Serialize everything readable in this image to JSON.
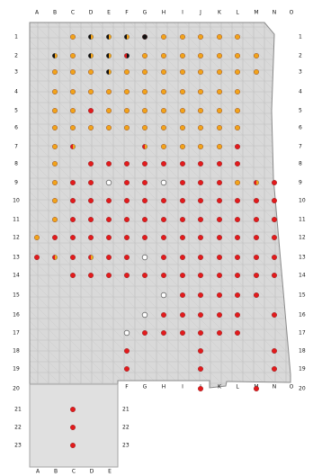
{
  "map": {
    "columns_top": [
      "A",
      "B",
      "C",
      "D",
      "E",
      "F",
      "G",
      "H",
      "I",
      "J",
      "K",
      "L",
      "M",
      "N",
      "O"
    ],
    "rows_left": [
      "1",
      "2",
      "3",
      "4",
      "5",
      "6",
      "7",
      "8",
      "9",
      "10",
      "11",
      "12",
      "13",
      "14",
      "15",
      "16",
      "17",
      "18",
      "19",
      "20"
    ],
    "rows_right": [
      "1",
      "2",
      "3",
      "4",
      "5",
      "6",
      "7",
      "8",
      "9",
      "10",
      "11",
      "12",
      "13",
      "14",
      "15",
      "16",
      "17",
      "18",
      "19",
      "20"
    ],
    "columns_bottom_main": [
      "F",
      "G",
      "H",
      "I",
      "J",
      "K",
      "L",
      "M",
      "N",
      "O"
    ],
    "inset_rows_left": [
      "21",
      "22",
      "23"
    ],
    "inset_rows_right": [
      "21",
      "22",
      "23"
    ],
    "inset_columns_bottom": [
      "A",
      "B",
      "C",
      "D",
      "E"
    ],
    "legend_colors": {
      "black": "#111111",
      "red": "#e31a1c",
      "orange": "#f2a31a",
      "white": "#ffffff"
    }
  },
  "points": [
    {
      "col": "C",
      "row": "1",
      "color": "orange"
    },
    {
      "col": "D",
      "row": "1",
      "color": "black-orange"
    },
    {
      "col": "E",
      "row": "1",
      "color": "black-orange"
    },
    {
      "col": "F",
      "row": "1",
      "color": "black-orange"
    },
    {
      "col": "G",
      "row": "1",
      "color": "black"
    },
    {
      "col": "H",
      "row": "1",
      "color": "orange"
    },
    {
      "col": "I",
      "row": "1",
      "color": "orange"
    },
    {
      "col": "J",
      "row": "1",
      "color": "orange"
    },
    {
      "col": "K",
      "row": "1",
      "color": "orange"
    },
    {
      "col": "L",
      "row": "1",
      "color": "orange"
    },
    {
      "col": "B",
      "row": "2",
      "color": "black-orange"
    },
    {
      "col": "C",
      "row": "2",
      "color": "orange"
    },
    {
      "col": "D",
      "row": "2",
      "color": "black-orange"
    },
    {
      "col": "E",
      "row": "2",
      "color": "black-orange"
    },
    {
      "col": "F",
      "row": "2",
      "color": "red-black"
    },
    {
      "col": "G",
      "row": "2",
      "color": "orange"
    },
    {
      "col": "H",
      "row": "2",
      "color": "orange"
    },
    {
      "col": "I",
      "row": "2",
      "color": "orange"
    },
    {
      "col": "J",
      "row": "2",
      "color": "orange"
    },
    {
      "col": "K",
      "row": "2",
      "color": "orange"
    },
    {
      "col": "L",
      "row": "2",
      "color": "orange"
    },
    {
      "col": "M",
      "row": "2",
      "color": "orange"
    },
    {
      "col": "B",
      "row": "3",
      "color": "orange"
    },
    {
      "col": "C",
      "row": "3",
      "color": "orange"
    },
    {
      "col": "D",
      "row": "3",
      "color": "orange"
    },
    {
      "col": "E",
      "row": "3",
      "color": "black-orange"
    },
    {
      "col": "F",
      "row": "3",
      "color": "orange"
    },
    {
      "col": "G",
      "row": "3",
      "color": "orange"
    },
    {
      "col": "H",
      "row": "3",
      "color": "orange"
    },
    {
      "col": "I",
      "row": "3",
      "color": "orange"
    },
    {
      "col": "J",
      "row": "3",
      "color": "orange"
    },
    {
      "col": "K",
      "row": "3",
      "color": "orange"
    },
    {
      "col": "L",
      "row": "3",
      "color": "orange"
    },
    {
      "col": "M",
      "row": "3",
      "color": "orange"
    },
    {
      "col": "B",
      "row": "4",
      "color": "orange"
    },
    {
      "col": "C",
      "row": "4",
      "color": "orange"
    },
    {
      "col": "D",
      "row": "4",
      "color": "orange"
    },
    {
      "col": "E",
      "row": "4",
      "color": "orange"
    },
    {
      "col": "F",
      "row": "4",
      "color": "orange"
    },
    {
      "col": "G",
      "row": "4",
      "color": "orange"
    },
    {
      "col": "H",
      "row": "4",
      "color": "orange"
    },
    {
      "col": "I",
      "row": "4",
      "color": "orange"
    },
    {
      "col": "J",
      "row": "4",
      "color": "orange"
    },
    {
      "col": "K",
      "row": "4",
      "color": "orange"
    },
    {
      "col": "L",
      "row": "4",
      "color": "orange"
    },
    {
      "col": "B",
      "row": "5",
      "color": "orange"
    },
    {
      "col": "C",
      "row": "5",
      "color": "orange"
    },
    {
      "col": "D",
      "row": "5",
      "color": "red"
    },
    {
      "col": "E",
      "row": "5",
      "color": "orange"
    },
    {
      "col": "F",
      "row": "5",
      "color": "orange"
    },
    {
      "col": "G",
      "row": "5",
      "color": "orange"
    },
    {
      "col": "H",
      "row": "5",
      "color": "orange"
    },
    {
      "col": "I",
      "row": "5",
      "color": "orange"
    },
    {
      "col": "J",
      "row": "5",
      "color": "orange"
    },
    {
      "col": "K",
      "row": "5",
      "color": "orange"
    },
    {
      "col": "L",
      "row": "5",
      "color": "orange"
    },
    {
      "col": "B",
      "row": "6",
      "color": "orange"
    },
    {
      "col": "C",
      "row": "6",
      "color": "orange"
    },
    {
      "col": "D",
      "row": "6",
      "color": "orange"
    },
    {
      "col": "E",
      "row": "6",
      "color": "orange"
    },
    {
      "col": "F",
      "row": "6",
      "color": "orange"
    },
    {
      "col": "G",
      "row": "6",
      "color": "orange"
    },
    {
      "col": "H",
      "row": "6",
      "color": "orange"
    },
    {
      "col": "I",
      "row": "6",
      "color": "orange"
    },
    {
      "col": "J",
      "row": "6",
      "color": "orange"
    },
    {
      "col": "K",
      "row": "6",
      "color": "orange"
    },
    {
      "col": "L",
      "row": "6",
      "color": "orange"
    },
    {
      "col": "B",
      "row": "7",
      "color": "orange"
    },
    {
      "col": "C",
      "row": "7",
      "color": "red-orange"
    },
    {
      "col": "G",
      "row": "7",
      "color": "red-orange"
    },
    {
      "col": "H",
      "row": "7",
      "color": "orange"
    },
    {
      "col": "I",
      "row": "7",
      "color": "orange"
    },
    {
      "col": "J",
      "row": "7",
      "color": "orange"
    },
    {
      "col": "K",
      "row": "7",
      "color": "orange"
    },
    {
      "col": "L",
      "row": "7",
      "color": "red"
    },
    {
      "col": "B",
      "row": "8",
      "color": "orange"
    },
    {
      "col": "D",
      "row": "8",
      "color": "red"
    },
    {
      "col": "E",
      "row": "8",
      "color": "red"
    },
    {
      "col": "F",
      "row": "8",
      "color": "red"
    },
    {
      "col": "G",
      "row": "8",
      "color": "red"
    },
    {
      "col": "H",
      "row": "8",
      "color": "red"
    },
    {
      "col": "I",
      "row": "8",
      "color": "red"
    },
    {
      "col": "J",
      "row": "8",
      "color": "red"
    },
    {
      "col": "K",
      "row": "8",
      "color": "red"
    },
    {
      "col": "L",
      "row": "8",
      "color": "red"
    },
    {
      "col": "B",
      "row": "9",
      "color": "orange"
    },
    {
      "col": "C",
      "row": "9",
      "color": "red"
    },
    {
      "col": "D",
      "row": "9",
      "color": "red"
    },
    {
      "col": "E",
      "row": "9",
      "color": "white"
    },
    {
      "col": "F",
      "row": "9",
      "color": "red"
    },
    {
      "col": "G",
      "row": "9",
      "color": "red"
    },
    {
      "col": "H",
      "row": "9",
      "color": "white"
    },
    {
      "col": "I",
      "row": "9",
      "color": "red"
    },
    {
      "col": "J",
      "row": "9",
      "color": "red"
    },
    {
      "col": "K",
      "row": "9",
      "color": "red"
    },
    {
      "col": "L",
      "row": "9",
      "color": "orange"
    },
    {
      "col": "M",
      "row": "9",
      "color": "red-orange"
    },
    {
      "col": "N",
      "row": "9",
      "color": "red"
    },
    {
      "col": "B",
      "row": "10",
      "color": "orange"
    },
    {
      "col": "C",
      "row": "10",
      "color": "red"
    },
    {
      "col": "D",
      "row": "10",
      "color": "red"
    },
    {
      "col": "E",
      "row": "10",
      "color": "red"
    },
    {
      "col": "F",
      "row": "10",
      "color": "red"
    },
    {
      "col": "G",
      "row": "10",
      "color": "red"
    },
    {
      "col": "H",
      "row": "10",
      "color": "red"
    },
    {
      "col": "I",
      "row": "10",
      "color": "red"
    },
    {
      "col": "J",
      "row": "10",
      "color": "red"
    },
    {
      "col": "K",
      "row": "10",
      "color": "red"
    },
    {
      "col": "L",
      "row": "10",
      "color": "red"
    },
    {
      "col": "M",
      "row": "10",
      "color": "red"
    },
    {
      "col": "N",
      "row": "10",
      "color": "red"
    },
    {
      "col": "B",
      "row": "11",
      "color": "orange"
    },
    {
      "col": "C",
      "row": "11",
      "color": "red"
    },
    {
      "col": "D",
      "row": "11",
      "color": "red"
    },
    {
      "col": "E",
      "row": "11",
      "color": "red"
    },
    {
      "col": "F",
      "row": "11",
      "color": "red"
    },
    {
      "col": "G",
      "row": "11",
      "color": "red"
    },
    {
      "col": "H",
      "row": "11",
      "color": "red"
    },
    {
      "col": "I",
      "row": "11",
      "color": "red"
    },
    {
      "col": "J",
      "row": "11",
      "color": "red"
    },
    {
      "col": "K",
      "row": "11",
      "color": "red"
    },
    {
      "col": "L",
      "row": "11",
      "color": "red"
    },
    {
      "col": "M",
      "row": "11",
      "color": "red"
    },
    {
      "col": "N",
      "row": "11",
      "color": "red"
    },
    {
      "col": "A",
      "row": "12",
      "color": "orange"
    },
    {
      "col": "B",
      "row": "12",
      "color": "red"
    },
    {
      "col": "C",
      "row": "12",
      "color": "red"
    },
    {
      "col": "D",
      "row": "12",
      "color": "red"
    },
    {
      "col": "E",
      "row": "12",
      "color": "red"
    },
    {
      "col": "F",
      "row": "12",
      "color": "red"
    },
    {
      "col": "G",
      "row": "12",
      "color": "red"
    },
    {
      "col": "H",
      "row": "12",
      "color": "red"
    },
    {
      "col": "I",
      "row": "12",
      "color": "red"
    },
    {
      "col": "J",
      "row": "12",
      "color": "red"
    },
    {
      "col": "K",
      "row": "12",
      "color": "red"
    },
    {
      "col": "L",
      "row": "12",
      "color": "red"
    },
    {
      "col": "M",
      "row": "12",
      "color": "red"
    },
    {
      "col": "N",
      "row": "12",
      "color": "red"
    },
    {
      "col": "A",
      "row": "13",
      "color": "red"
    },
    {
      "col": "B",
      "row": "13",
      "color": "red-orange"
    },
    {
      "col": "C",
      "row": "13",
      "color": "red"
    },
    {
      "col": "D",
      "row": "13",
      "color": "red-orange"
    },
    {
      "col": "E",
      "row": "13",
      "color": "red"
    },
    {
      "col": "F",
      "row": "13",
      "color": "red"
    },
    {
      "col": "G",
      "row": "13",
      "color": "white"
    },
    {
      "col": "H",
      "row": "13",
      "color": "red"
    },
    {
      "col": "I",
      "row": "13",
      "color": "red"
    },
    {
      "col": "J",
      "row": "13",
      "color": "red"
    },
    {
      "col": "K",
      "row": "13",
      "color": "red"
    },
    {
      "col": "L",
      "row": "13",
      "color": "red"
    },
    {
      "col": "M",
      "row": "13",
      "color": "red"
    },
    {
      "col": "N",
      "row": "13",
      "color": "red"
    },
    {
      "col": "C",
      "row": "14",
      "color": "red"
    },
    {
      "col": "D",
      "row": "14",
      "color": "red"
    },
    {
      "col": "E",
      "row": "14",
      "color": "red"
    },
    {
      "col": "F",
      "row": "14",
      "color": "red"
    },
    {
      "col": "G",
      "row": "14",
      "color": "red"
    },
    {
      "col": "H",
      "row": "14",
      "color": "red"
    },
    {
      "col": "I",
      "row": "14",
      "color": "red"
    },
    {
      "col": "J",
      "row": "14",
      "color": "red"
    },
    {
      "col": "K",
      "row": "14",
      "color": "red"
    },
    {
      "col": "L",
      "row": "14",
      "color": "red"
    },
    {
      "col": "M",
      "row": "14",
      "color": "red"
    },
    {
      "col": "N",
      "row": "14",
      "color": "red"
    },
    {
      "col": "H",
      "row": "15",
      "color": "white"
    },
    {
      "col": "I",
      "row": "15",
      "color": "red"
    },
    {
      "col": "J",
      "row": "15",
      "color": "red"
    },
    {
      "col": "K",
      "row": "15",
      "color": "red"
    },
    {
      "col": "L",
      "row": "15",
      "color": "red"
    },
    {
      "col": "M",
      "row": "15",
      "color": "red"
    },
    {
      "col": "G",
      "row": "16",
      "color": "white"
    },
    {
      "col": "H",
      "row": "16",
      "color": "red"
    },
    {
      "col": "I",
      "row": "16",
      "color": "red"
    },
    {
      "col": "J",
      "row": "16",
      "color": "red"
    },
    {
      "col": "K",
      "row": "16",
      "color": "red"
    },
    {
      "col": "L",
      "row": "16",
      "color": "red"
    },
    {
      "col": "N",
      "row": "16",
      "color": "red"
    },
    {
      "col": "F",
      "row": "17",
      "color": "white"
    },
    {
      "col": "G",
      "row": "17",
      "color": "red"
    },
    {
      "col": "H",
      "row": "17",
      "color": "red"
    },
    {
      "col": "I",
      "row": "17",
      "color": "red"
    },
    {
      "col": "J",
      "row": "17",
      "color": "red"
    },
    {
      "col": "K",
      "row": "17",
      "color": "red"
    },
    {
      "col": "L",
      "row": "17",
      "color": "red"
    },
    {
      "col": "F",
      "row": "18",
      "color": "red"
    },
    {
      "col": "J",
      "row": "18",
      "color": "red"
    },
    {
      "col": "N",
      "row": "18",
      "color": "red"
    },
    {
      "col": "F",
      "row": "19",
      "color": "red"
    },
    {
      "col": "J",
      "row": "19",
      "color": "red"
    },
    {
      "col": "N",
      "row": "19",
      "color": "red"
    },
    {
      "col": "J",
      "row": "20",
      "color": "red"
    },
    {
      "col": "M",
      "row": "20",
      "color": "red"
    },
    {
      "col": "C",
      "row": "21",
      "color": "red"
    },
    {
      "col": "C",
      "row": "22",
      "color": "red"
    },
    {
      "col": "C",
      "row": "23",
      "color": "red"
    }
  ]
}
